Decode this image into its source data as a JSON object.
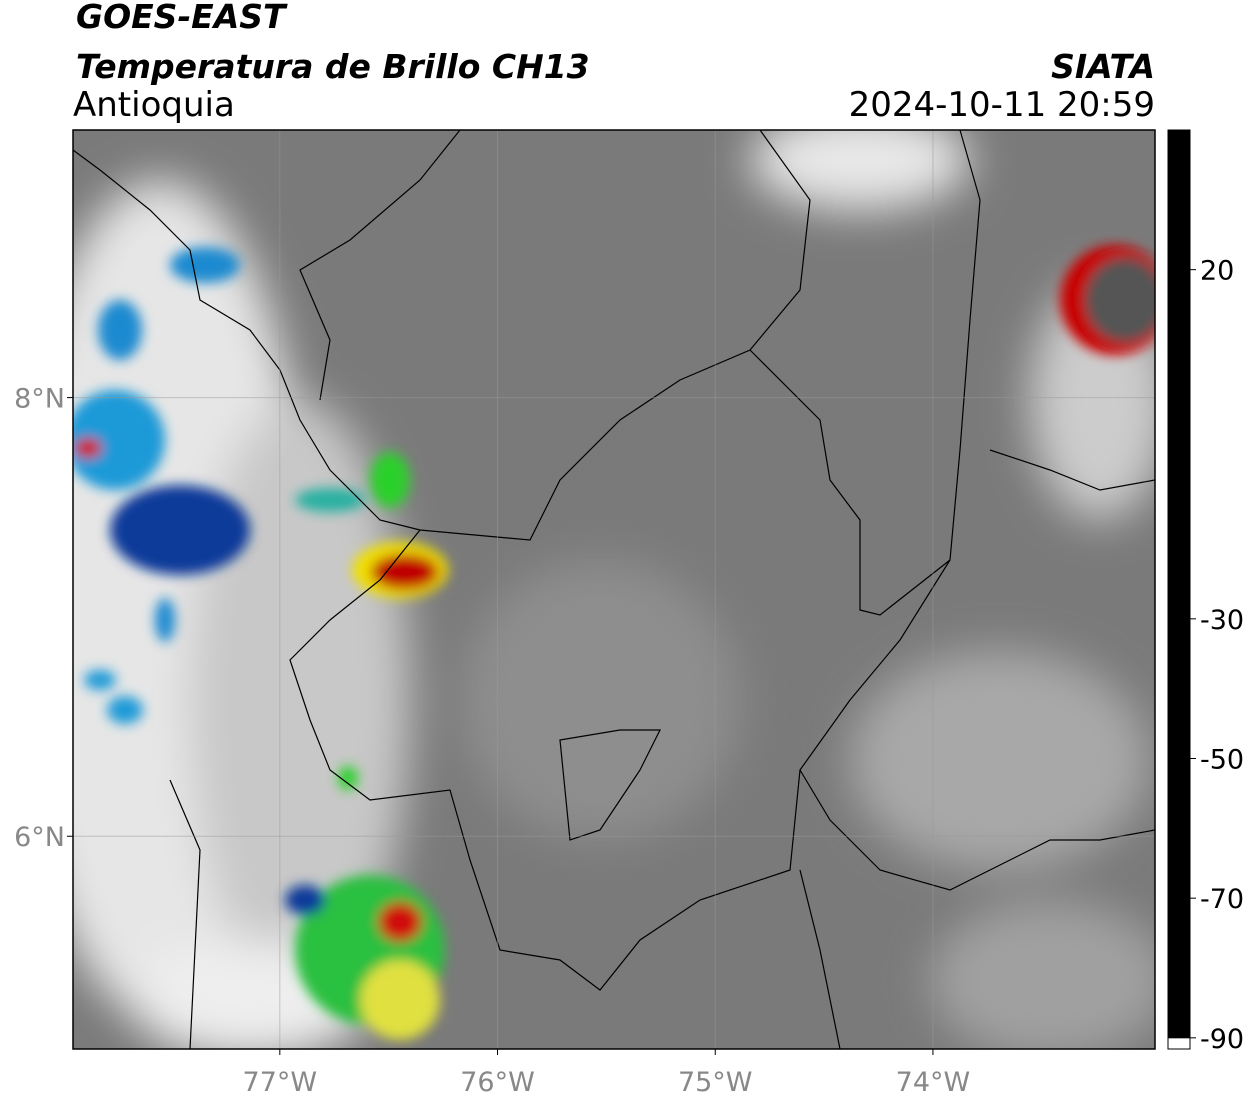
{
  "header": {
    "title": "GOES-EAST",
    "subtitle": "Temperatura de Brillo CH13",
    "region": "Antioquia",
    "source": "SIATA",
    "datetime": "2024-10-11 20:59"
  },
  "map": {
    "xlim": [
      -77.95,
      -72.98
    ],
    "ylim": [
      5.03,
      9.22
    ],
    "xticks": [
      {
        "value": -77,
        "label": "77°W"
      },
      {
        "value": -76,
        "label": "76°W"
      },
      {
        "value": -75,
        "label": "75°W"
      },
      {
        "value": -74,
        "label": "74°W"
      }
    ],
    "yticks": [
      {
        "value": 8,
        "label": "8°N"
      },
      {
        "value": 6,
        "label": "6°N"
      }
    ],
    "grid": true
  },
  "colorbar": {
    "lim": [
      -91.6,
      40
    ],
    "ticks": [
      20,
      -30,
      -50,
      -70,
      -90
    ],
    "under_color": "#ffffff",
    "stops": [
      {
        "value": 40,
        "color": "#000000"
      },
      {
        "value": 20,
        "color": "#5a5a5a"
      },
      {
        "value": -18,
        "color": "#ffffff"
      },
      {
        "value": -19,
        "color": "#00e5ff"
      },
      {
        "value": -30,
        "color": "#002a8c"
      },
      {
        "value": -32,
        "color": "#006b3a"
      },
      {
        "value": -40,
        "color": "#1aff1a"
      },
      {
        "value": -48,
        "color": "#f5ff00"
      },
      {
        "value": -53,
        "color": "#ffaa00"
      },
      {
        "value": -60,
        "color": "#ff1a00"
      },
      {
        "value": -67,
        "color": "#5a0000"
      },
      {
        "value": -70,
        "color": "#000000"
      },
      {
        "value": -77,
        "color": "#dcd0d6"
      },
      {
        "value": -80,
        "color": "#f060c8"
      },
      {
        "value": -90,
        "color": "#8a1a8a"
      }
    ]
  }
}
